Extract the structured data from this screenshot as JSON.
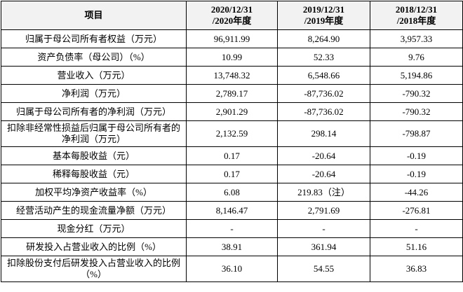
{
  "table": {
    "header": {
      "item": "项目",
      "periods": [
        [
          "2020/12/31",
          "/2020年度"
        ],
        [
          "2019/12/31",
          "/2019年度"
        ],
        [
          "2018/12/31",
          "/2018年度"
        ]
      ]
    },
    "rows": [
      [
        "归属于母公司所有者权益（万元）",
        "96,911.99",
        "8,264.90",
        "3,957.33"
      ],
      [
        "资产负债率（母公司）（%）",
        "10.99",
        "52.33",
        "9.76"
      ],
      [
        "营业收入（万元）",
        "13,748.32",
        "6,548.66",
        "5,194.86"
      ],
      [
        "净利润（万元）",
        "2,789.17",
        "-87,736.02",
        "-790.32"
      ],
      [
        "归属于母公司所有者的净利润（万元）",
        "2,901.29",
        "-87,736.02",
        "-790.32"
      ],
      [
        "扣除非经常性损益后归属于母公司所有者的净利润（万元）",
        "2,132.59",
        "298.14",
        "-798.87"
      ],
      [
        "基本每股收益（元）",
        "0.17",
        "-20.64",
        "-0.19"
      ],
      [
        "稀释每股收益（元）",
        "0.17",
        "-20.64",
        "-0.19"
      ],
      [
        "加权平均净资产收益率（%）",
        "6.08",
        "219.83（注）",
        "-44.26"
      ],
      [
        "经营活动产生的现金流量净额（万元）",
        "8,146.47",
        "2,791.69",
        "-276.81"
      ],
      [
        "现金分红（万元）",
        "-",
        "-",
        "-"
      ],
      [
        "研发投入占营业收入的比例（%）",
        "38.91",
        "361.94",
        "51.16"
      ],
      [
        "扣除股份支付后研发投入占营业收入的比例（%）",
        "36.10",
        "54.55",
        "36.83"
      ]
    ]
  }
}
